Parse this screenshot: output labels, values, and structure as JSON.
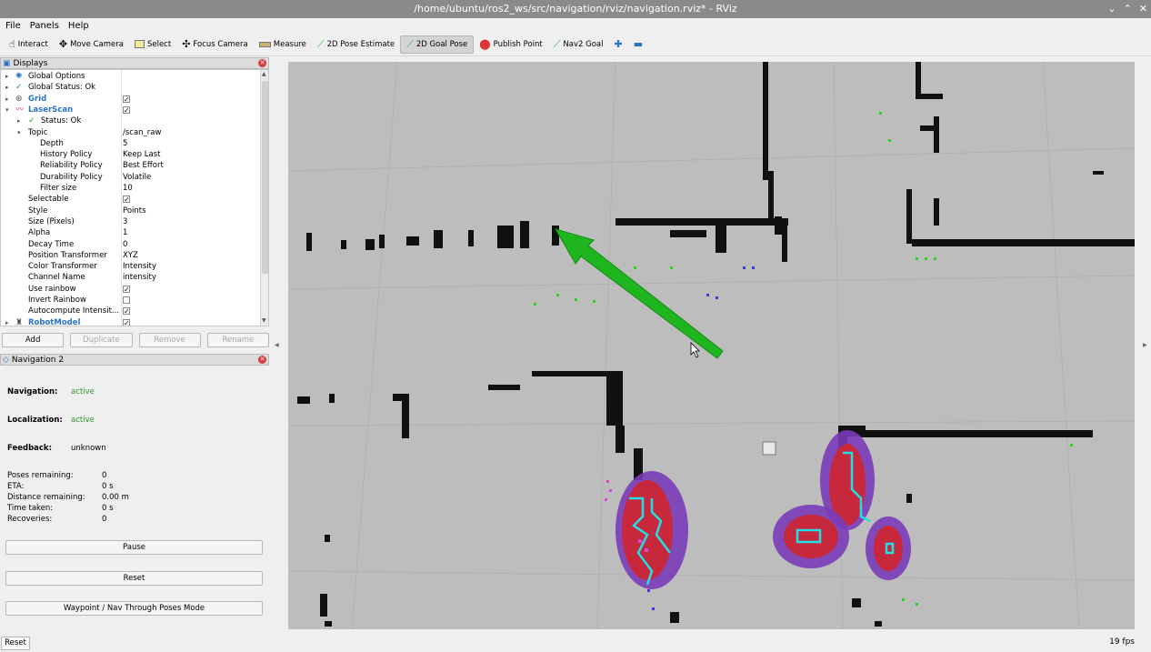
{
  "window": {
    "title": "/home/ubuntu/ros2_ws/src/navigation/rviz/navigation.rviz* - RViz"
  },
  "menu": [
    "File",
    "Panels",
    "Help"
  ],
  "toolbar": [
    {
      "label": "Interact",
      "icon": "hand-icon"
    },
    {
      "label": "Move Camera",
      "icon": "move-camera-icon"
    },
    {
      "label": "Select",
      "icon": "select-icon"
    },
    {
      "label": "Focus Camera",
      "icon": "focus-camera-icon"
    },
    {
      "label": "Measure",
      "icon": "ruler-icon"
    },
    {
      "label": "2D Pose Estimate",
      "icon": "pose-arrow-icon"
    },
    {
      "label": "2D Goal Pose",
      "icon": "goal-arrow-icon"
    },
    {
      "label": "Publish Point",
      "icon": "pin-icon"
    },
    {
      "label": "Nav2 Goal",
      "icon": "nav-arrow-icon"
    }
  ],
  "displays": {
    "title": "Displays",
    "rows": [
      {
        "label": "Global Options"
      },
      {
        "label": "Global Status: Ok"
      },
      {
        "label": "Grid",
        "checked": true
      },
      {
        "label": "LaserScan",
        "checked": true
      },
      {
        "label": "Status: Ok"
      },
      {
        "label": "Topic",
        "value": "/scan_raw"
      },
      {
        "label": "Depth",
        "value": "5"
      },
      {
        "label": "History Policy",
        "value": "Keep Last"
      },
      {
        "label": "Reliability Policy",
        "value": "Best Effort"
      },
      {
        "label": "Durability Policy",
        "value": "Volatile"
      },
      {
        "label": "Filter size",
        "value": "10"
      },
      {
        "label": "Selectable",
        "checked": true
      },
      {
        "label": "Style",
        "value": "Points"
      },
      {
        "label": "Size (Pixels)",
        "value": "3"
      },
      {
        "label": "Alpha",
        "value": "1"
      },
      {
        "label": "Decay Time",
        "value": "0"
      },
      {
        "label": "Position Transformer",
        "value": "XYZ"
      },
      {
        "label": "Color Transformer",
        "value": "Intensity"
      },
      {
        "label": "Channel Name",
        "value": "intensity"
      },
      {
        "label": "Use rainbow",
        "checked": true
      },
      {
        "label": "Invert Rainbow",
        "checked": false
      },
      {
        "label": "Autocompute Intensit...",
        "checked": true
      },
      {
        "label": "RobotModel",
        "checked": true
      }
    ],
    "buttons": [
      "Add",
      "Duplicate",
      "Remove",
      "Rename"
    ]
  },
  "navigation": {
    "title": "Navigation 2",
    "status": [
      {
        "label": "Navigation:",
        "value": "active"
      },
      {
        "label": "Localization:",
        "value": "active"
      },
      {
        "label": "Feedback:",
        "value": "unknown"
      }
    ],
    "stats": [
      {
        "label": "Poses remaining:",
        "value": "0"
      },
      {
        "label": "ETA:",
        "value": "0 s"
      },
      {
        "label": "Distance remaining:",
        "value": "0.00 m"
      },
      {
        "label": "Time taken:",
        "value": "0 s"
      },
      {
        "label": "Recoveries:",
        "value": "0"
      }
    ],
    "buttons": [
      "Pause",
      "Reset",
      "Waypoint / Nav Through Poses Mode"
    ]
  },
  "statusbar": {
    "reset": "Reset",
    "fps": "19 fps"
  },
  "colors": {
    "goal_arrow": "#1fb51f",
    "costmap_core": "#c8283c",
    "costmap_edge": "#7a3bb8",
    "path": "#1ee0e6"
  }
}
